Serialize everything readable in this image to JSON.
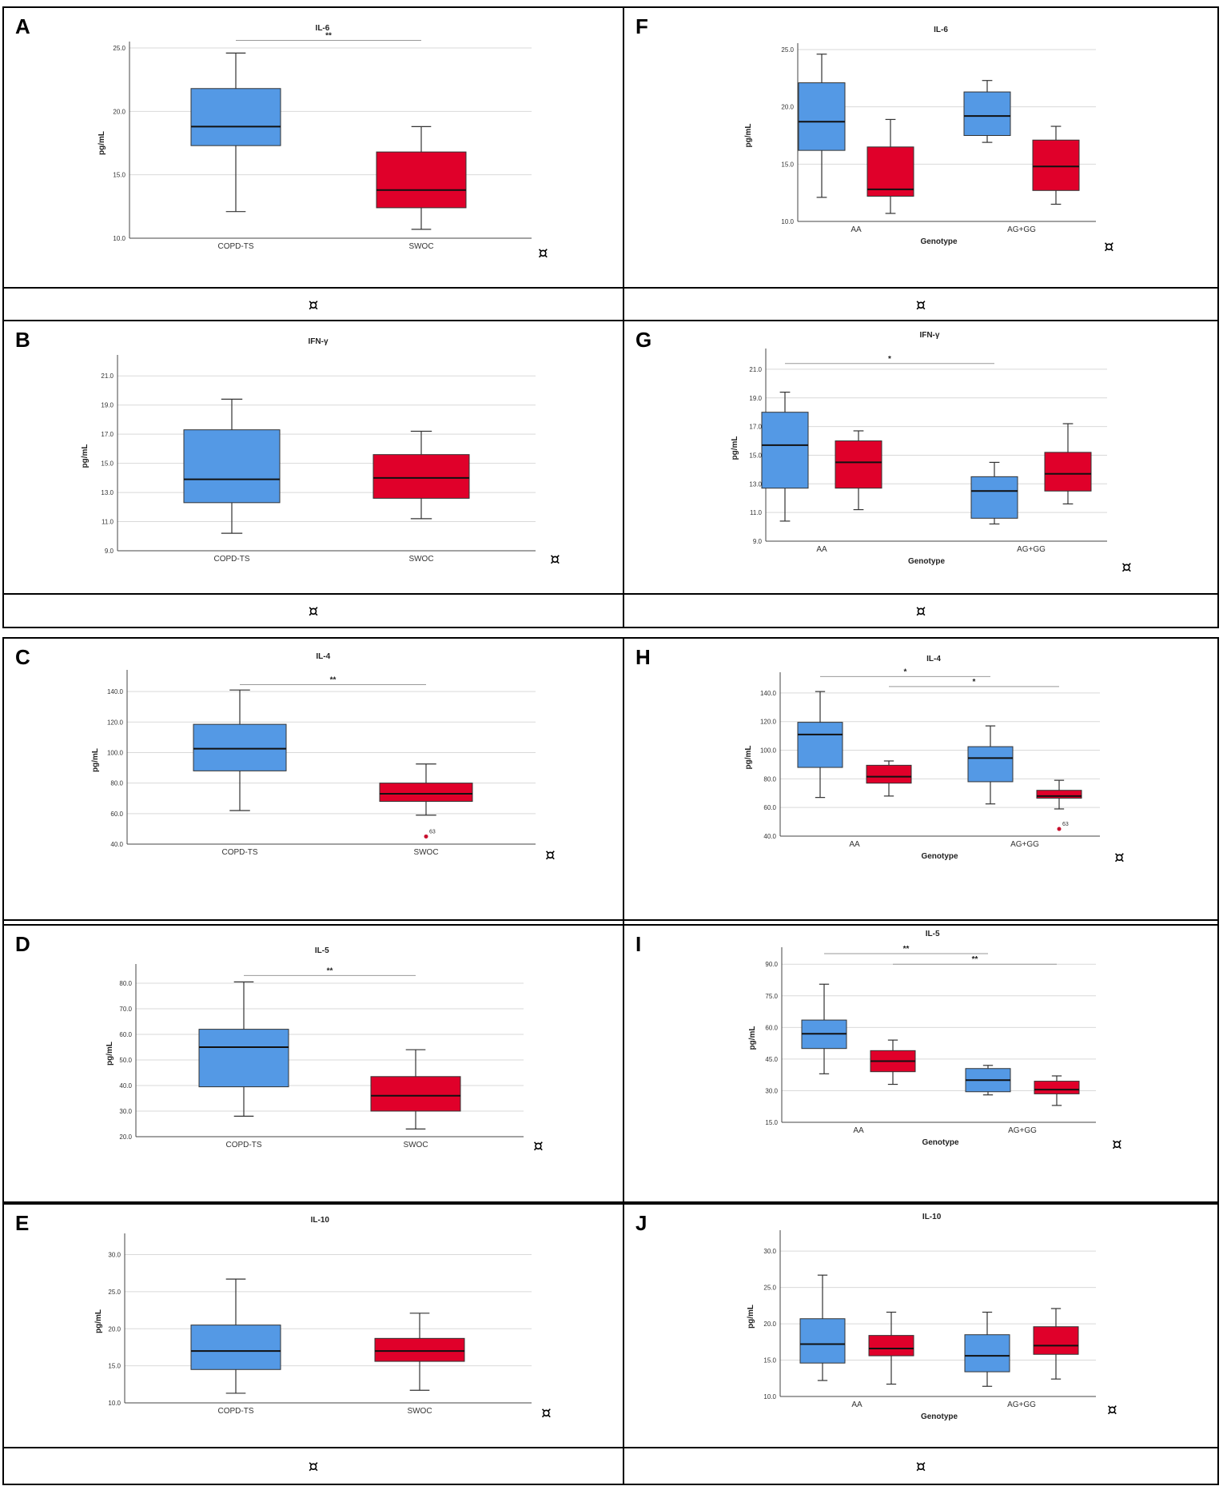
{
  "figure": {
    "cell_mark": "¤",
    "footer_mark": "¤",
    "colors": {
      "copd_ts": "#5499e5",
      "swoc": "#e0002a",
      "axis": "#444444",
      "grid": "#d9d9d9",
      "outlier": "#c8102e"
    }
  },
  "chart_data": [
    {
      "panel": "A",
      "type": "box",
      "title": "IL-6",
      "ylabel": "pg/mL",
      "xlabel": "",
      "ylim": [
        10,
        25
      ],
      "yticks": [
        "10.0",
        "15.0",
        "20.0",
        "25.0"
      ],
      "groups": [
        "COPD-TS",
        "SWOC"
      ],
      "boxes": [
        {
          "group": 0,
          "series": "COPD-TS",
          "min": 12.1,
          "q1": 17.3,
          "median": 18.8,
          "q3": 21.8,
          "max": 24.6
        },
        {
          "group": 1,
          "series": "SWOC",
          "min": 10.7,
          "q1": 12.4,
          "median": 13.8,
          "q3": 16.8,
          "max": 18.8
        }
      ],
      "significance": [
        {
          "from": 0,
          "to": 1,
          "y": 25.6,
          "label": "**"
        }
      ],
      "outliers": []
    },
    {
      "panel": "F",
      "type": "box",
      "title": "IL-6",
      "ylabel": "pg/mL",
      "xlabel": "Genotype",
      "ylim": [
        10,
        25
      ],
      "yticks": [
        "10.0",
        "15.0",
        "20.0",
        "25.0"
      ],
      "groups": [
        "AA",
        "AG+GG"
      ],
      "boxes": [
        {
          "group": 0,
          "series": "COPD-TS",
          "min": 12.1,
          "q1": 16.2,
          "median": 18.7,
          "q3": 22.1,
          "max": 24.6
        },
        {
          "group": 0,
          "series": "SWOC",
          "min": 10.7,
          "q1": 12.2,
          "median": 12.8,
          "q3": 16.5,
          "max": 18.9
        },
        {
          "group": 1,
          "series": "COPD-TS",
          "min": 16.9,
          "q1": 17.5,
          "median": 19.2,
          "q3": 21.3,
          "max": 22.3
        },
        {
          "group": 1,
          "series": "SWOC",
          "min": 11.5,
          "q1": 12.7,
          "median": 14.8,
          "q3": 17.1,
          "max": 18.3
        }
      ],
      "significance": [],
      "outliers": []
    },
    {
      "panel": "B",
      "type": "box",
      "title": "IFN-γ",
      "ylabel": "pg/mL",
      "xlabel": "",
      "ylim": [
        9,
        22
      ],
      "yticks": [
        "9.0",
        "11.0",
        "13.0",
        "15.0",
        "17.0",
        "19.0",
        "21.0"
      ],
      "groups": [
        "COPD-TS",
        "SWOC"
      ],
      "boxes": [
        {
          "group": 0,
          "series": "COPD-TS",
          "min": 10.2,
          "q1": 12.3,
          "median": 13.9,
          "q3": 17.3,
          "max": 19.4
        },
        {
          "group": 1,
          "series": "SWOC",
          "min": 11.2,
          "q1": 12.6,
          "median": 14.0,
          "q3": 15.6,
          "max": 17.2
        }
      ],
      "significance": [],
      "outliers": []
    },
    {
      "panel": "G",
      "type": "box",
      "title": "IFN-γ",
      "ylabel": "pg/mL",
      "xlabel": "Genotype",
      "ylim": [
        9,
        22
      ],
      "yticks": [
        "9.0",
        "11.0",
        "13.0",
        "15.0",
        "17.0",
        "19.0",
        "21.0"
      ],
      "groups": [
        "AA",
        "AG+GG"
      ],
      "boxes": [
        {
          "group": 0,
          "series": "COPD-TS",
          "min": 10.4,
          "q1": 12.7,
          "median": 15.7,
          "q3": 18.0,
          "max": 19.4
        },
        {
          "group": 0,
          "series": "SWOC",
          "min": 11.2,
          "q1": 12.7,
          "median": 14.5,
          "q3": 16.0,
          "max": 16.7
        },
        {
          "group": 1,
          "series": "COPD-TS",
          "min": 10.2,
          "q1": 10.6,
          "median": 12.5,
          "q3": 13.5,
          "max": 14.5
        },
        {
          "group": 1,
          "series": "SWOC",
          "min": 11.6,
          "q1": 12.5,
          "median": 13.7,
          "q3": 15.2,
          "max": 17.2
        }
      ],
      "significance": [
        {
          "from_box": 0,
          "to_box": 2,
          "y": 21.4,
          "label": "*"
        }
      ],
      "outliers": []
    },
    {
      "panel": "C",
      "type": "box",
      "title": "IL-4",
      "ylabel": "pg/mL",
      "xlabel": "",
      "ylim": [
        40,
        150
      ],
      "yticks": [
        "40.0",
        "60.0",
        "80.0",
        "100.0",
        "120.0",
        "140.0"
      ],
      "groups": [
        "COPD-TS",
        "SWOC"
      ],
      "boxes": [
        {
          "group": 0,
          "series": "COPD-TS",
          "min": 62.0,
          "q1": 88.0,
          "median": 102.5,
          "q3": 118.5,
          "max": 141.0
        },
        {
          "group": 1,
          "series": "SWOC",
          "min": 59.0,
          "q1": 68.0,
          "median": 73.0,
          "q3": 80.0,
          "max": 92.5
        }
      ],
      "significance": [
        {
          "from": 0,
          "to": 1,
          "y": 144.5,
          "label": "**"
        }
      ],
      "outliers": [
        {
          "box": 1,
          "y": 45.0,
          "label": "63"
        }
      ]
    },
    {
      "panel": "H",
      "type": "box",
      "title": "IL-4",
      "ylabel": "pg/mL",
      "xlabel": "Genotype",
      "ylim": [
        40,
        150
      ],
      "yticks": [
        "40.0",
        "60.0",
        "80.0",
        "100.0",
        "120.0",
        "140.0"
      ],
      "groups": [
        "AA",
        "AG+GG"
      ],
      "boxes": [
        {
          "group": 0,
          "series": "COPD-TS",
          "min": 67.0,
          "q1": 88.0,
          "median": 111.0,
          "q3": 119.5,
          "max": 141.0
        },
        {
          "group": 0,
          "series": "SWOC",
          "min": 68.0,
          "q1": 77.0,
          "median": 81.5,
          "q3": 89.5,
          "max": 92.5
        },
        {
          "group": 1,
          "series": "COPD-TS",
          "min": 62.5,
          "q1": 78.0,
          "median": 94.5,
          "q3": 102.5,
          "max": 117.0
        },
        {
          "group": 1,
          "series": "SWOC",
          "min": 59.0,
          "q1": 66.5,
          "median": 68.0,
          "q3": 72.0,
          "max": 79.0
        }
      ],
      "significance": [
        {
          "from_box": 0,
          "to_box": 2,
          "y": 151.5,
          "label": "*"
        },
        {
          "from_box": 1,
          "to_box": 3,
          "y": 144.5,
          "label": "*"
        }
      ],
      "outliers": [
        {
          "box": 3,
          "y": 45.0,
          "label": "63"
        }
      ]
    },
    {
      "panel": "D",
      "type": "box",
      "title": "IL-5",
      "ylabel": "pg/mL",
      "xlabel": "",
      "ylim": [
        20,
        85
      ],
      "yticks": [
        "20.0",
        "30.0",
        "40.0",
        "50.0",
        "60.0",
        "70.0",
        "80.0"
      ],
      "groups": [
        "COPD-TS",
        "SWOC"
      ],
      "boxes": [
        {
          "group": 0,
          "series": "COPD-TS",
          "min": 28.0,
          "q1": 39.5,
          "median": 55.0,
          "q3": 62.0,
          "max": 80.5
        },
        {
          "group": 1,
          "series": "SWOC",
          "min": 23.0,
          "q1": 30.0,
          "median": 36.0,
          "q3": 43.5,
          "max": 54.0
        }
      ],
      "significance": [
        {
          "from": 0,
          "to": 1,
          "y": 83.0,
          "label": "**"
        }
      ],
      "outliers": []
    },
    {
      "panel": "I",
      "type": "box",
      "title": "IL-5",
      "ylabel": "pg/mL",
      "xlabel": "Genotype",
      "ylim": [
        15,
        95
      ],
      "yticks": [
        "15.0",
        "30.0",
        "45.0",
        "60.0",
        "75.0",
        "90.0"
      ],
      "groups": [
        "AA",
        "AG+GG"
      ],
      "boxes": [
        {
          "group": 0,
          "series": "COPD-TS",
          "min": 38.0,
          "q1": 50.0,
          "median": 57.0,
          "q3": 63.5,
          "max": 80.5
        },
        {
          "group": 0,
          "series": "SWOC",
          "min": 33.0,
          "q1": 39.0,
          "median": 44.0,
          "q3": 49.0,
          "max": 54.0
        },
        {
          "group": 1,
          "series": "COPD-TS",
          "min": 28.0,
          "q1": 29.5,
          "median": 35.0,
          "q3": 40.5,
          "max": 42.0
        },
        {
          "group": 1,
          "series": "SWOC",
          "min": 23.0,
          "q1": 28.5,
          "median": 30.5,
          "q3": 34.5,
          "max": 37.0
        }
      ],
      "significance": [
        {
          "from_box": 0,
          "to_box": 2,
          "y": 95.0,
          "label": "**"
        },
        {
          "from_box": 1,
          "to_box": 3,
          "y": 90.0,
          "label": "**"
        }
      ],
      "outliers": []
    },
    {
      "panel": "E",
      "type": "box",
      "title": "IL-10",
      "ylabel": "pg/mL",
      "xlabel": "",
      "ylim": [
        10,
        32
      ],
      "yticks": [
        "10.0",
        "15.0",
        "20.0",
        "25.0",
        "30.0"
      ],
      "groups": [
        "COPD-TS",
        "SWOC"
      ],
      "boxes": [
        {
          "group": 0,
          "series": "COPD-TS",
          "min": 11.3,
          "q1": 14.5,
          "median": 17.0,
          "q3": 20.5,
          "max": 26.7
        },
        {
          "group": 1,
          "series": "SWOC",
          "min": 11.7,
          "q1": 15.6,
          "median": 17.0,
          "q3": 18.7,
          "max": 22.1
        }
      ],
      "significance": [],
      "outliers": []
    },
    {
      "panel": "J",
      "type": "box",
      "title": "IL-10",
      "ylabel": "pg/mL",
      "xlabel": "Genotype",
      "ylim": [
        10,
        32
      ],
      "yticks": [
        "10.0",
        "15.0",
        "20.0",
        "25.0",
        "30.0"
      ],
      "groups": [
        "AA",
        "AG+GG"
      ],
      "boxes": [
        {
          "group": 0,
          "series": "COPD-TS",
          "min": 12.2,
          "q1": 14.6,
          "median": 17.2,
          "q3": 20.7,
          "max": 26.7
        },
        {
          "group": 0,
          "series": "SWOC",
          "min": 11.7,
          "q1": 15.6,
          "median": 16.6,
          "q3": 18.4,
          "max": 21.6
        },
        {
          "group": 1,
          "series": "COPD-TS",
          "min": 11.4,
          "q1": 13.4,
          "median": 15.6,
          "q3": 18.5,
          "max": 21.6
        },
        {
          "group": 1,
          "series": "SWOC",
          "min": 12.4,
          "q1": 15.8,
          "median": 17.0,
          "q3": 19.6,
          "max": 22.1
        }
      ],
      "significance": [],
      "outliers": []
    }
  ]
}
